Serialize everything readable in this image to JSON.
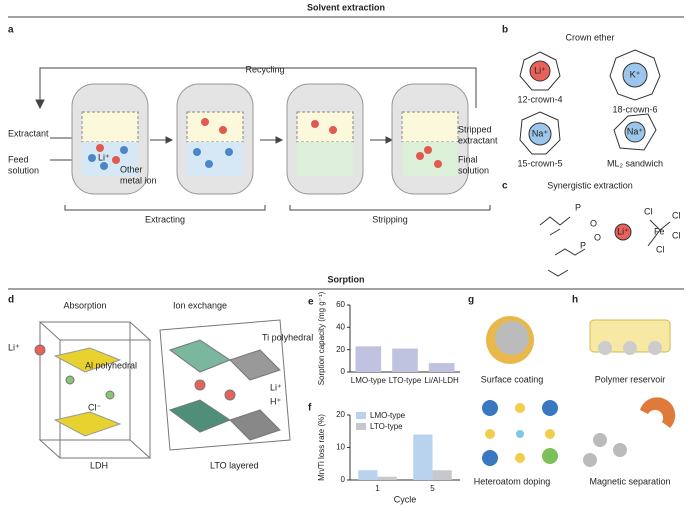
{
  "titles": {
    "solvent": "Solvent extraction",
    "sorption": "Sorption"
  },
  "a": {
    "label": "a",
    "recycling": "Recycling",
    "extractant": "Extractant",
    "feed": [
      "Feed",
      "solution"
    ],
    "li": "Li⁺",
    "other": [
      "Other",
      "metal ion"
    ],
    "stripped": [
      "Stripped",
      "extractant"
    ],
    "final": [
      "Final",
      "solution"
    ],
    "extracting": "Extracting",
    "stripping": "Stripping"
  },
  "b": {
    "label": "b",
    "title": "Crown ether",
    "crowns": [
      {
        "ion": "Li⁺",
        "name": "12-crown-4"
      },
      {
        "ion": "K⁺",
        "name": "18-crown-6"
      },
      {
        "ion": "Na⁺",
        "name": "15-crown-5"
      },
      {
        "ion": "Na⁺",
        "name": "ML₂ sandwich"
      }
    ]
  },
  "c": {
    "label": "c",
    "title": "Synergistic extraction",
    "ion": "Li⁺",
    "metal": "Fe",
    "ligand": "Cl",
    "p": "P",
    "o": "O"
  },
  "d": {
    "label": "d",
    "absorption": "Absorption",
    "ion_exchange": "Ion exchange",
    "li": "Li⁺",
    "al": "Al polyhedral",
    "cl": "Cl⁻",
    "ldh": "LDH",
    "ti": "Ti polyhedral",
    "li2": "Li⁺",
    "h": "H⁺",
    "lto": "LTO layered"
  },
  "chart_data": [
    {
      "type": "bar",
      "label": "e",
      "ylabel": "Sorption capacity (mg g⁻¹)",
      "categories": [
        "LMO-type",
        "LTO-type",
        "Li/Al-LDH"
      ],
      "values": [
        23,
        21,
        8
      ],
      "color": "#bfc3df",
      "ylim": [
        0,
        60
      ],
      "yticks": [
        0,
        20,
        40,
        60
      ]
    },
    {
      "type": "grouped-bar",
      "label": "f",
      "ylabel": "Mn/Ti loss rate (%)",
      "xlabel": "Cycle",
      "categories": [
        "1",
        "5"
      ],
      "series": [
        {
          "name": "LMO-type",
          "color": "#b9d3ee",
          "values": [
            3,
            14
          ]
        },
        {
          "name": "LTO-type",
          "color": "#c8c8cc",
          "values": [
            1,
            3
          ]
        }
      ],
      "ylim": [
        0,
        20
      ],
      "yticks": [
        0,
        10,
        20
      ]
    }
  ],
  "g": {
    "label": "g",
    "coating": "Surface coating",
    "doping": "Heteroatom doping"
  },
  "h": {
    "label": "h",
    "reservoir": "Polymer reservoir",
    "magnetic": "Magnetic separation"
  }
}
